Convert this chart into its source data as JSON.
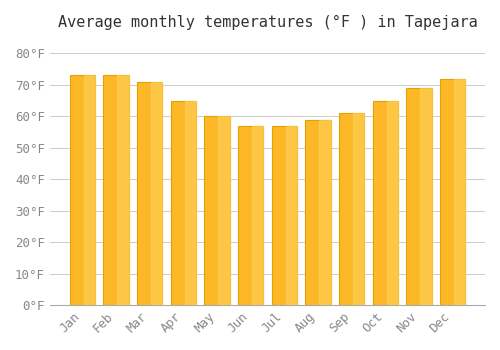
{
  "title": "Average monthly temperatures (°F ) in Tapejara",
  "months": [
    "Jan",
    "Feb",
    "Mar",
    "Apr",
    "May",
    "Jun",
    "Jul",
    "Aug",
    "Sep",
    "Oct",
    "Nov",
    "Dec"
  ],
  "values": [
    73,
    73,
    71,
    65,
    60,
    57,
    57,
    59,
    61,
    65,
    69,
    72
  ],
  "bar_color": "#FDB827",
  "bar_edge_color": "#E8A000",
  "background_color": "#FFFFFF",
  "grid_color": "#CCCCCC",
  "title_fontsize": 11,
  "tick_fontsize": 9,
  "ytick_labels": [
    "0°F",
    "10°F",
    "20°F",
    "30°F",
    "40°F",
    "50°F",
    "60°F",
    "70°F",
    "80°F"
  ],
  "ytick_values": [
    0,
    10,
    20,
    30,
    40,
    50,
    60,
    70,
    80
  ],
  "ylim": [
    0,
    84
  ],
  "font_family": "monospace"
}
